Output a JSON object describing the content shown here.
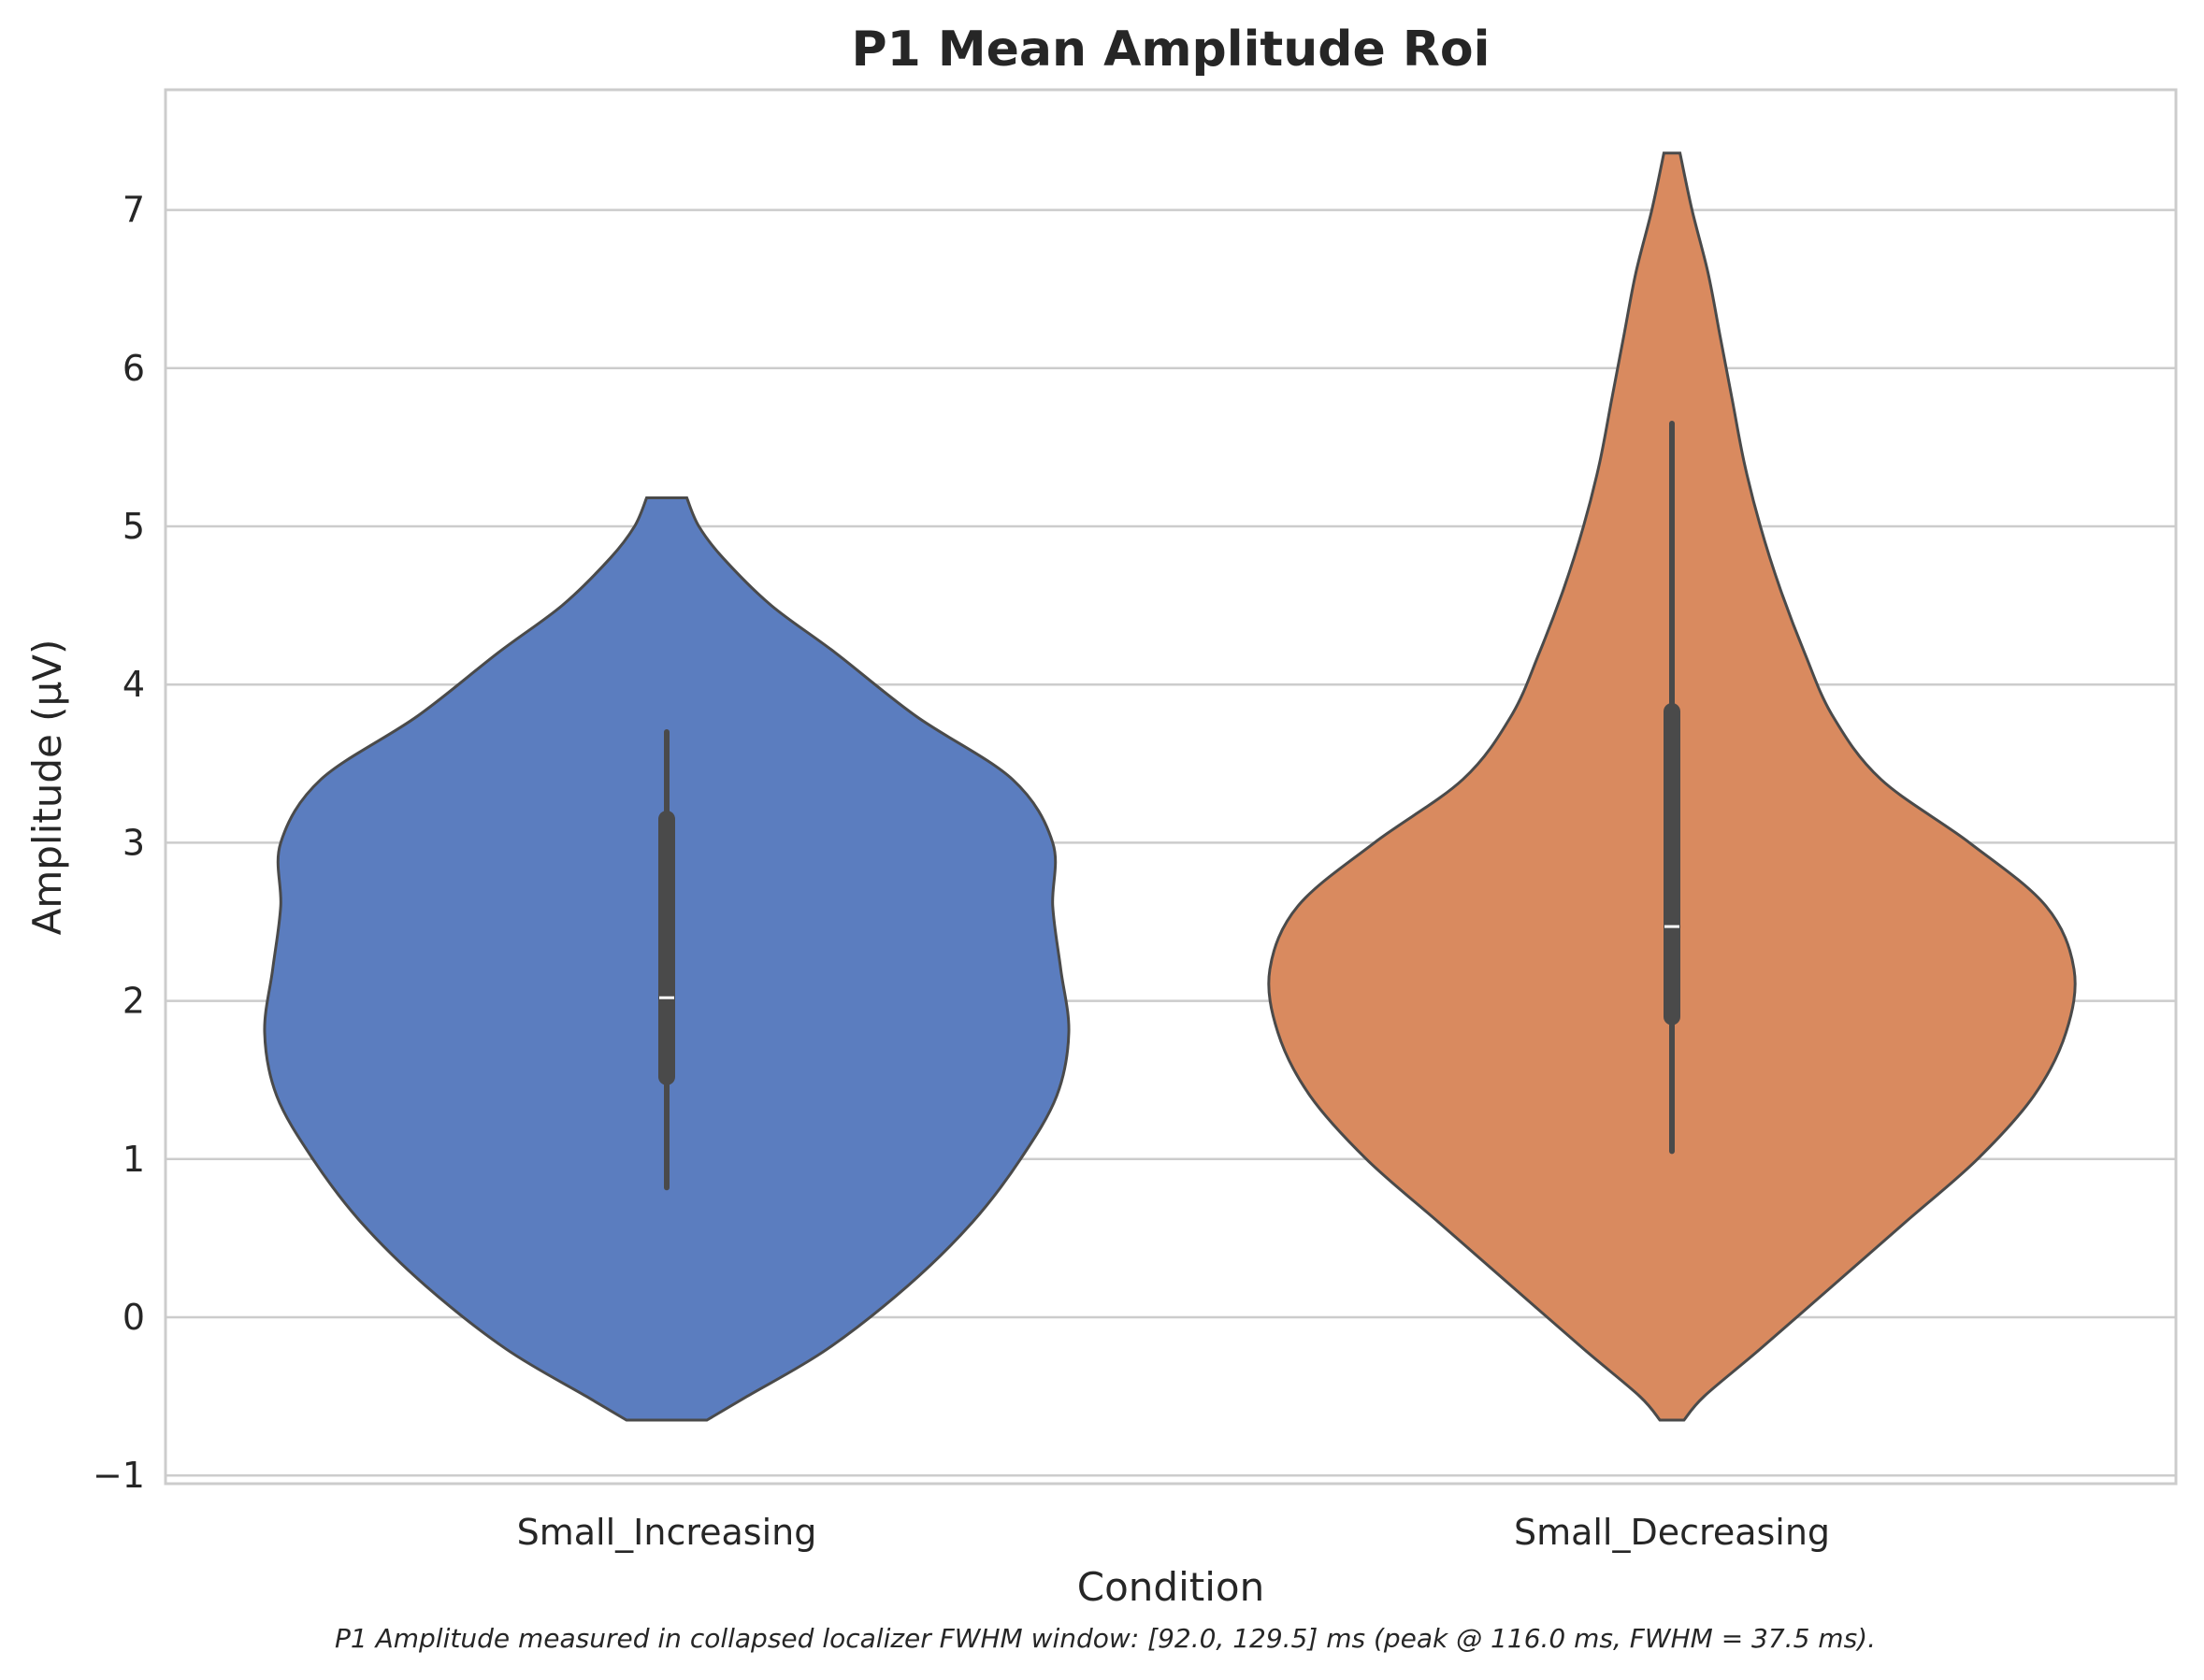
{
  "chart_data": {
    "type": "violin",
    "title": "P1 Mean Amplitude Roi",
    "xlabel": "Condition",
    "ylabel": "Amplitude (μV)",
    "caption": "P1 Amplitude measured in collapsed localizer FWHM window: [92.0, 129.5] ms (peak @ 116.0 ms, FWHM = 37.5 ms).",
    "ylim": [
      -1.05,
      7.75
    ],
    "yticks": [
      -1,
      0,
      1,
      2,
      3,
      4,
      5,
      6,
      7
    ],
    "ytick_labels": [
      "−1",
      "0",
      "1",
      "2",
      "3",
      "4",
      "5",
      "6",
      "7"
    ],
    "grid": "horizontal",
    "categories": [
      "Small_Increasing",
      "Small_Decreasing"
    ],
    "colors": [
      "#5b7dbf",
      "#d98a5f"
    ],
    "edge_color": "#4a4a4a",
    "series": [
      {
        "name": "Small_Increasing",
        "density": {
          "y": [
            -0.65,
            -0.5,
            -0.2,
            0.2,
            0.6,
            1.0,
            1.4,
            1.8,
            2.2,
            2.6,
            3.0,
            3.4,
            3.8,
            4.2,
            4.5,
            4.8,
            5.0,
            5.18
          ],
          "w": [
            0.1,
            0.2,
            0.4,
            0.6,
            0.76,
            0.88,
            0.97,
            1.0,
            0.98,
            0.96,
            0.96,
            0.86,
            0.62,
            0.42,
            0.26,
            0.14,
            0.08,
            0.05
          ]
        },
        "whisker_low": 0.82,
        "q1": 1.52,
        "median": 2.02,
        "q3": 3.15,
        "whisker_high": 3.7
      },
      {
        "name": "Small_Decreasing",
        "density": {
          "y": [
            -0.65,
            -0.5,
            -0.2,
            0.2,
            0.6,
            1.0,
            1.4,
            1.8,
            2.2,
            2.6,
            3.0,
            3.4,
            3.8,
            4.2,
            4.6,
            5.0,
            5.4,
            5.8,
            6.2,
            6.6,
            7.0,
            7.36
          ],
          "w": [
            0.03,
            0.08,
            0.22,
            0.4,
            0.58,
            0.76,
            0.9,
            0.98,
            1.0,
            0.93,
            0.74,
            0.52,
            0.4,
            0.33,
            0.27,
            0.22,
            0.18,
            0.15,
            0.12,
            0.09,
            0.05,
            0.02
          ]
        },
        "whisker_low": 1.05,
        "q1": 1.9,
        "median": 2.47,
        "q3": 3.83,
        "whisker_high": 5.65
      }
    ]
  }
}
